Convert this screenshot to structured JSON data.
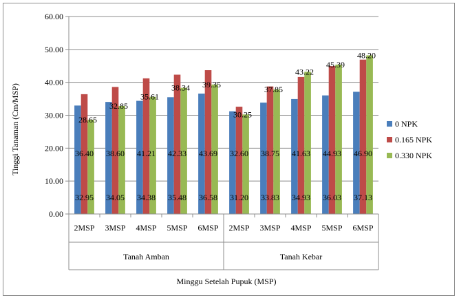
{
  "chart_data": {
    "type": "bar",
    "ylabel": "Tinggi Tanaman (Cm/MSP)",
    "xlabel": "Minggu Setelah Pupuk (MSP)",
    "ylim": [
      0,
      60
    ],
    "yticks": [
      "0.00",
      "10.00",
      "20.00",
      "30.00",
      "40.00",
      "50.00",
      "60.00"
    ],
    "grid": true,
    "legend_position": "right",
    "groups": [
      {
        "name": "Tanah Amban",
        "categories": [
          "2MSP",
          "3MSP",
          "4MSP",
          "5MSP",
          "6MSP"
        ]
      },
      {
        "name": "Tanah Kebar",
        "categories": [
          "2MSP",
          "3MSP",
          "4MSP",
          "5MSP",
          "6MSP"
        ]
      }
    ],
    "series": [
      {
        "name": "0 NPK",
        "color": "#4a7ebb",
        "values": [
          32.95,
          34.05,
          34.38,
          35.48,
          36.58,
          31.2,
          33.83,
          34.93,
          36.03,
          37.13
        ],
        "labels": [
          "32.95",
          "34.05",
          "34.38",
          "35.48",
          "36.58",
          "31.20",
          "33.83",
          "34.93",
          "36.03",
          "37.13"
        ]
      },
      {
        "name": "0.165 NPK",
        "color": "#be4b48",
        "values": [
          36.4,
          38.6,
          41.21,
          42.33,
          43.69,
          32.6,
          38.75,
          41.63,
          44.93,
          46.9
        ],
        "labels": [
          "36.40",
          "38.60",
          "41.21",
          "42.33",
          "43.69",
          "32.60",
          "38.75",
          "41.63",
          "44.93",
          "46.90"
        ]
      },
      {
        "name": "0.330 NPK",
        "color": "#98b954",
        "values": [
          28.65,
          32.85,
          35.61,
          38.34,
          39.35,
          30.25,
          37.85,
          43.22,
          45.39,
          48.2
        ],
        "labels": [
          "28.65",
          "32.85",
          "35.61",
          "38.34",
          "39.35",
          "30.25",
          "37.85",
          "43.22",
          "45.39",
          "48.20"
        ]
      }
    ]
  }
}
